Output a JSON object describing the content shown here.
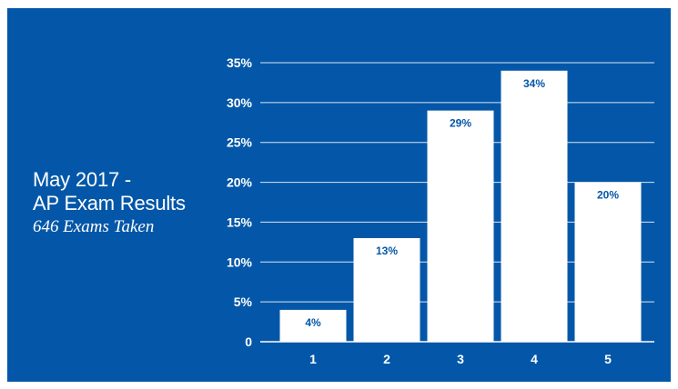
{
  "title_line1": "May 2017 -",
  "title_line2": "AP Exam Results",
  "subtitle": "646 Exams Taken",
  "colors": {
    "background": "#0457a8",
    "bars": "#ffffff",
    "gridlines": "#ffffff",
    "data_labels": "#0457a8"
  },
  "chart_data": {
    "type": "bar",
    "categories": [
      "1",
      "2",
      "3",
      "4",
      "5"
    ],
    "values": [
      4,
      13,
      29,
      34,
      20
    ],
    "data_labels": [
      "4%",
      "13%",
      "29%",
      "34%",
      "20%"
    ],
    "ylim": [
      0,
      35
    ],
    "yticks": [
      0,
      5,
      10,
      15,
      20,
      25,
      30,
      35
    ],
    "ytick_labels": [
      "0",
      "5%",
      "10%",
      "15%",
      "20%",
      "25%",
      "30%",
      "35%"
    ],
    "grid": true,
    "legend": "none"
  }
}
